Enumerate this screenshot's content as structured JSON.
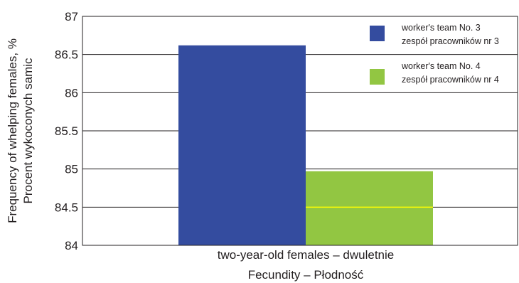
{
  "chart_data": {
    "type": "bar",
    "categories": [
      "two-year-old females – dwuletnie"
    ],
    "series": [
      {
        "name": "worker's team No. 3",
        "name_line2": "zespół pracowników nr 3",
        "color": "#344c9f",
        "values": [
          86.62
        ]
      },
      {
        "name": "worker's team No. 4",
        "name_line2": "zespół pracowników nr 4",
        "color": "#92c642",
        "values": [
          84.97
        ]
      }
    ],
    "xlabel": "Fecundity – Płodność",
    "ylabel_line1": "Frequency of whelping females, %",
    "ylabel_line2": "Procent wykoconych samic",
    "ylim": [
      84,
      87
    ],
    "yticks": [
      84,
      84.5,
      85,
      85.5,
      86,
      86.5,
      87
    ],
    "ytick_labels": [
      "84",
      "84.5",
      "85",
      "85.5",
      "86",
      "86.5",
      "87"
    ],
    "grid": true,
    "legend_position": "top-right",
    "highlight_line_color": "#ffff00"
  }
}
